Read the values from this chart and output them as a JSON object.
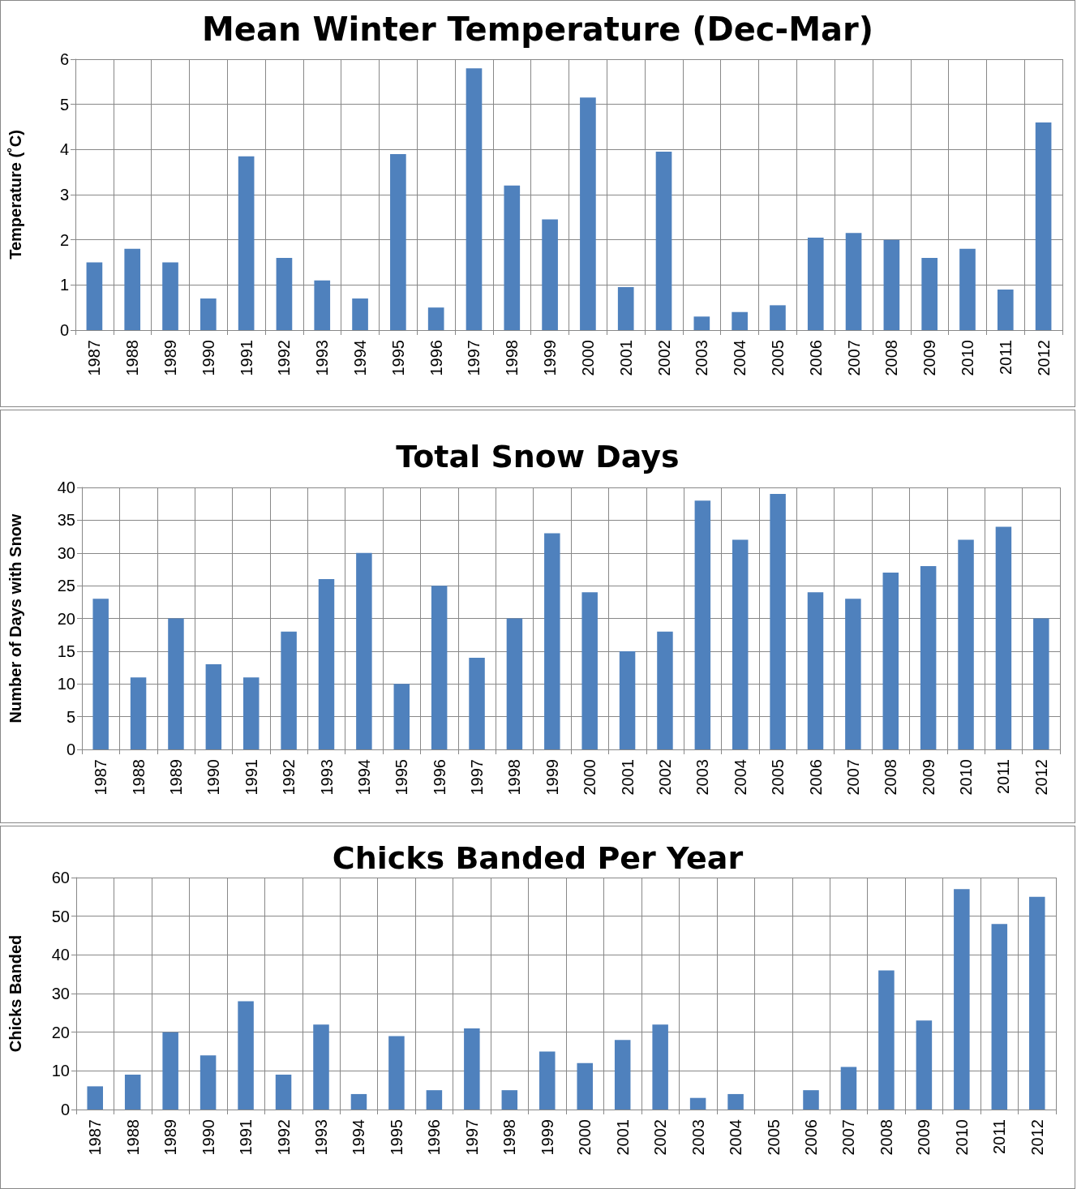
{
  "chart_data": [
    {
      "type": "bar",
      "title": "Mean Winter Temperature (Dec-Mar)",
      "ylabel": "Temperature (˚C)",
      "categories": [
        "1987",
        "1988",
        "1989",
        "1990",
        "1991",
        "1992",
        "1993",
        "1994",
        "1995",
        "1996",
        "1997",
        "1998",
        "1999",
        "2000",
        "2001",
        "2002",
        "2003",
        "2004",
        "2005",
        "2006",
        "2007",
        "2008",
        "2009",
        "2010",
        "2011",
        "2012"
      ],
      "values": [
        1.5,
        1.8,
        1.5,
        0.7,
        3.85,
        1.6,
        1.1,
        0.7,
        3.9,
        0.5,
        5.8,
        3.2,
        2.45,
        5.15,
        0.95,
        3.95,
        0.3,
        0.4,
        0.55,
        2.05,
        2.15,
        2.0,
        1.6,
        1.8,
        0.9,
        4.6
      ],
      "color": "#4f81bd",
      "ylim": [
        0,
        6
      ],
      "yticks": [
        0,
        1,
        2,
        3,
        4,
        5,
        6
      ],
      "grid": true
    },
    {
      "type": "bar",
      "title": "Total Snow Days",
      "ylabel": "Number of Days with Snow",
      "categories": [
        "1987",
        "1988",
        "1989",
        "1990",
        "1991",
        "1992",
        "1993",
        "1994",
        "1995",
        "1996",
        "1997",
        "1998",
        "1999",
        "2000",
        "2001",
        "2002",
        "2003",
        "2004",
        "2005",
        "2006",
        "2007",
        "2008",
        "2009",
        "2010",
        "2011",
        "2012"
      ],
      "values": [
        23,
        11,
        20,
        13,
        11,
        18,
        26,
        30,
        10,
        25,
        14,
        20,
        33,
        24,
        15,
        18,
        38,
        32,
        39,
        24,
        23,
        27,
        28,
        32,
        34,
        20
      ],
      "color": "#4f81bd",
      "ylim": [
        0,
        40
      ],
      "yticks": [
        0,
        5,
        10,
        15,
        20,
        25,
        30,
        35,
        40
      ],
      "grid": true
    },
    {
      "type": "bar",
      "title": "Chicks Banded Per Year",
      "ylabel": "Chicks Banded",
      "categories": [
        "1987",
        "1988",
        "1989",
        "1990",
        "1991",
        "1992",
        "1993",
        "1994",
        "1995",
        "1996",
        "1997",
        "1998",
        "1999",
        "2000",
        "2001",
        "2002",
        "2003",
        "2004",
        "2005",
        "2006",
        "2007",
        "2008",
        "2009",
        "2010",
        "2011",
        "2012"
      ],
      "values": [
        6,
        9,
        20,
        14,
        28,
        9,
        22,
        4,
        19,
        5,
        21,
        5,
        15,
        12,
        18,
        22,
        3,
        4,
        0,
        5,
        11,
        36,
        23,
        57,
        48,
        55
      ],
      "color": "#4f81bd",
      "ylim": [
        0,
        60
      ],
      "yticks": [
        0,
        10,
        20,
        30,
        40,
        50,
        60
      ],
      "grid": true
    }
  ]
}
